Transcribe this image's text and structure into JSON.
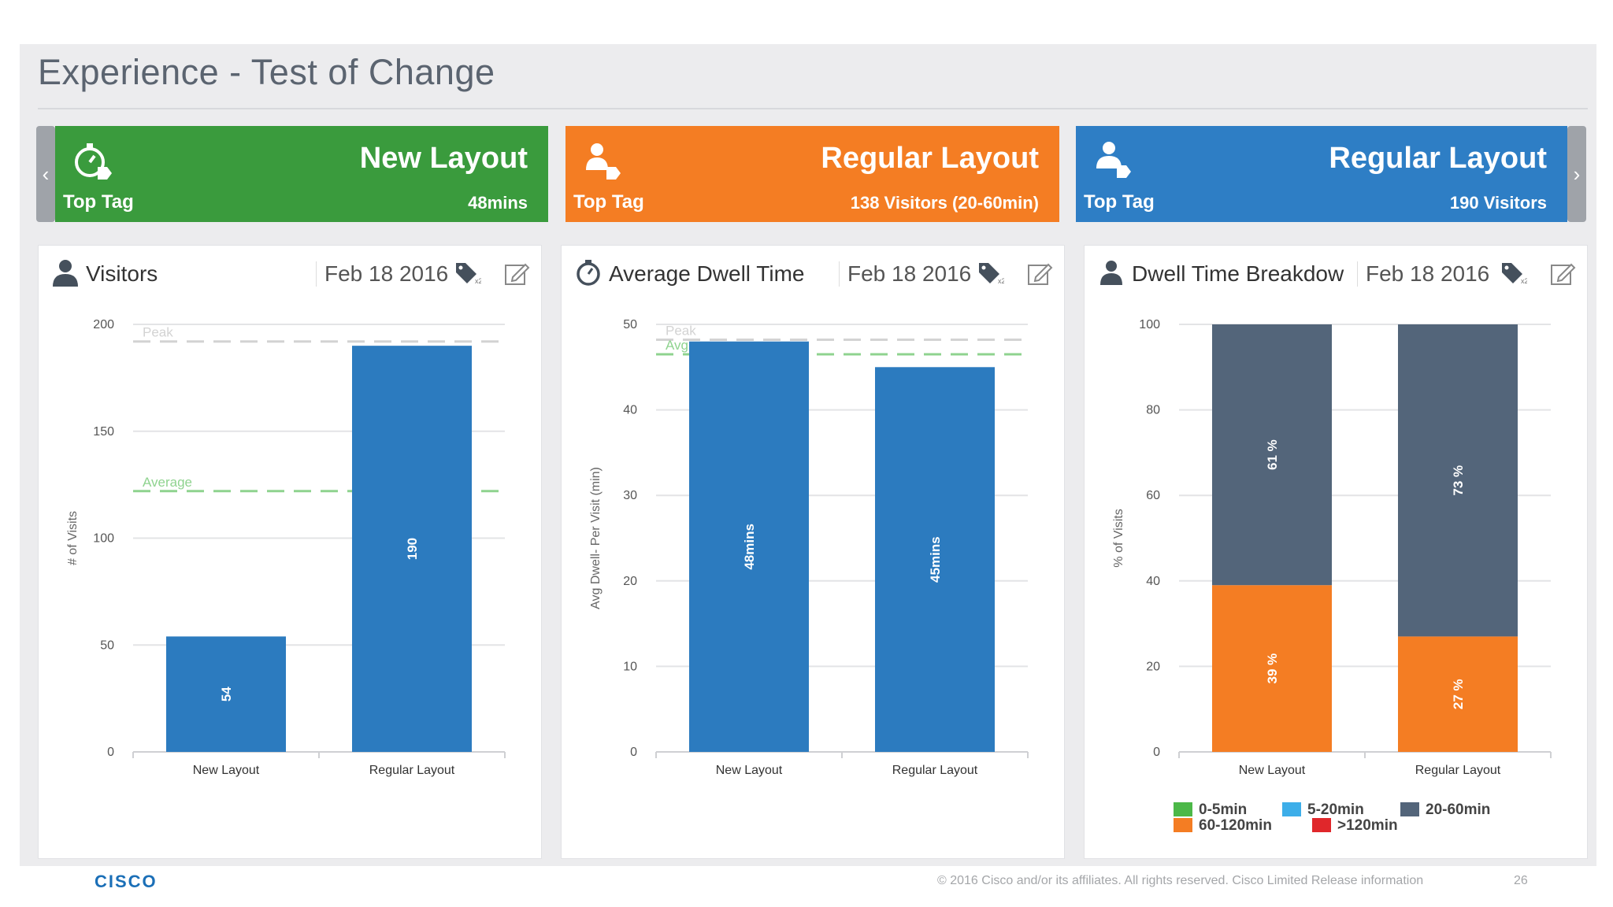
{
  "page": {
    "title": "Experience - Test of Change"
  },
  "kpi_tiles": [
    {
      "color": "#3a9b3d",
      "icon": "stopwatch-tag-icon",
      "top_tag": "Top Tag",
      "title": "New Layout",
      "value": "48mins"
    },
    {
      "color": "#f47d23",
      "icon": "person-tag-icon",
      "top_tag": "Top Tag",
      "title": "Regular Layout",
      "value": "138 Visitors (20-60min)"
    },
    {
      "color": "#2e7ec5",
      "icon": "people-tag-icon",
      "top_tag": "Top Tag",
      "title": "Regular Layout",
      "value": "190 Visitors"
    }
  ],
  "cards": [
    {
      "title": "Visitors",
      "date": "Feb 18 2016",
      "icon": "person-icon",
      "tag_count": "x2"
    },
    {
      "title": "Average Dwell Time",
      "date": "Feb 18 2016",
      "icon": "stopwatch-icon",
      "tag_count": "x2"
    },
    {
      "title": "Dwell Time Breakdow",
      "date": "Feb 18 2016",
      "icon": "person-icon",
      "tag_count": "x2"
    }
  ],
  "chart_data": [
    {
      "type": "bar",
      "categories": [
        "New Layout",
        "Regular Layout"
      ],
      "values": [
        54,
        190
      ],
      "bar_labels": [
        "54",
        "190"
      ],
      "ylabel": "# of Visits",
      "ylim": [
        0,
        200
      ],
      "yticks": [
        "0",
        "50",
        "100",
        "150",
        "200"
      ],
      "ytick_values": [
        0,
        50,
        100,
        150,
        200
      ],
      "reference_lines": [
        {
          "label": "Peak",
          "value": 192,
          "color": "#d3d3d3"
        },
        {
          "label": "Average",
          "value": 122,
          "color": "#8fd38f"
        }
      ],
      "bar_color": "#2c7bbf",
      "grid": true
    },
    {
      "type": "bar",
      "categories": [
        "New Layout",
        "Regular Layout"
      ],
      "values": [
        48,
        45
      ],
      "bar_labels": [
        "48mins",
        "45mins"
      ],
      "ylabel": "Avg Dwell- Per Visit (min)",
      "ylim": [
        0,
        50
      ],
      "yticks": [
        "0",
        "10",
        "20",
        "30",
        "40",
        "50"
      ],
      "ytick_values": [
        0,
        10,
        20,
        30,
        40,
        50
      ],
      "reference_lines": [
        {
          "label": "Peak",
          "value": 48.2,
          "color": "#d3d3d3"
        },
        {
          "label": "Avg",
          "value": 46.5,
          "color": "#8fd38f"
        }
      ],
      "bar_color": "#2c7bbf",
      "grid": true
    },
    {
      "type": "bar",
      "stacked": true,
      "categories": [
        "New Layout",
        "Regular Layout"
      ],
      "series": [
        {
          "name": "0-5min",
          "color": "#4cb848",
          "values": [
            0,
            0
          ],
          "labels": [
            "",
            ""
          ]
        },
        {
          "name": "5-20min",
          "color": "#3daee9",
          "values": [
            0,
            0
          ],
          "labels": [
            "",
            ""
          ]
        },
        {
          "name": "60-120min",
          "color": "#f47d23",
          "values": [
            39,
            27
          ],
          "labels": [
            "39 %",
            "27 %"
          ]
        },
        {
          "name": ">120min",
          "color": "#e0272b",
          "values": [
            0,
            0
          ],
          "labels": [
            "",
            ""
          ]
        },
        {
          "name": "20-60min",
          "color": "#53657a",
          "values": [
            61,
            73
          ],
          "labels": [
            "61 %",
            "73 %"
          ]
        }
      ],
      "ylabel": "% of Visits",
      "ylim": [
        0,
        100
      ],
      "yticks": [
        "0",
        "20",
        "40",
        "60",
        "80",
        "100"
      ],
      "ytick_values": [
        0,
        20,
        40,
        60,
        80,
        100
      ],
      "legend": "bottom",
      "grid": true
    }
  ],
  "legend_items": [
    {
      "name": "0-5min",
      "color": "#4cb848"
    },
    {
      "name": "5-20min",
      "color": "#3daee9"
    },
    {
      "name": "20-60min",
      "color": "#53657a"
    },
    {
      "name": "60-120min",
      "color": "#f47d23"
    },
    {
      "name": ">120min",
      "color": "#e0272b"
    }
  ],
  "footer": {
    "logo": "CISCO",
    "copyright": "© 2016  Cisco and/or its affiliates. All rights reserved.    Cisco Limited Release information",
    "page_number": "26"
  }
}
